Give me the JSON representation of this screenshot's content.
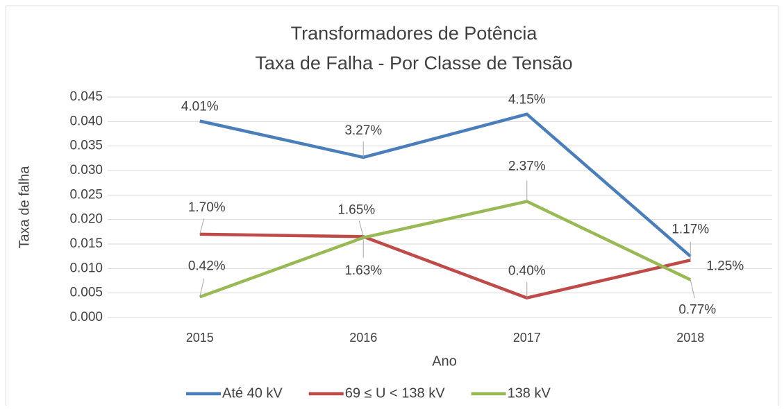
{
  "chart_data": {
    "type": "line",
    "title": [
      "Transformadores de Potência",
      "Taxa de Falha - Por Classe de Tensão"
    ],
    "x_label": "Ano",
    "y_label": "Taxa de falha",
    "categories": [
      "2015",
      "2016",
      "2017",
      "2018"
    ],
    "series": [
      {
        "name": "Até 40 kV",
        "color": "#4a7ebb",
        "values": [
          0.0401,
          0.0327,
          0.0415,
          0.0125
        ],
        "value_labels": [
          "4.01%",
          "3.27%",
          "4.15%",
          "1.25%"
        ]
      },
      {
        "name": "69 ≤ U < 138 kV",
        "color": "#be4b48",
        "values": [
          0.017,
          0.0165,
          0.004,
          0.0117
        ],
        "value_labels": [
          "1.70%",
          "1.65%",
          "0.40%",
          "1.17%"
        ]
      },
      {
        "name": "138 kV",
        "color": "#98b954",
        "values": [
          0.0042,
          0.0163,
          0.0237,
          0.0077
        ],
        "value_labels": [
          "0.42%",
          "1.63%",
          "2.37%",
          "0.77%"
        ]
      }
    ],
    "ylim": [
      0,
      0.045
    ],
    "yticks": [
      {
        "value": 0,
        "label": "0.000"
      },
      {
        "value": 0.005,
        "label": "0.005"
      },
      {
        "value": 0.01,
        "label": "0.010"
      },
      {
        "value": 0.015,
        "label": "0.015"
      },
      {
        "value": 0.02,
        "label": "0.020"
      },
      {
        "value": 0.025,
        "label": "0.025"
      },
      {
        "value": 0.03,
        "label": "0.030"
      },
      {
        "value": 0.035,
        "label": "0.035"
      },
      {
        "value": 0.04,
        "label": "0.040"
      },
      {
        "value": 0.045,
        "label": "0.045"
      }
    ],
    "grid": true,
    "legend": "bottom"
  }
}
